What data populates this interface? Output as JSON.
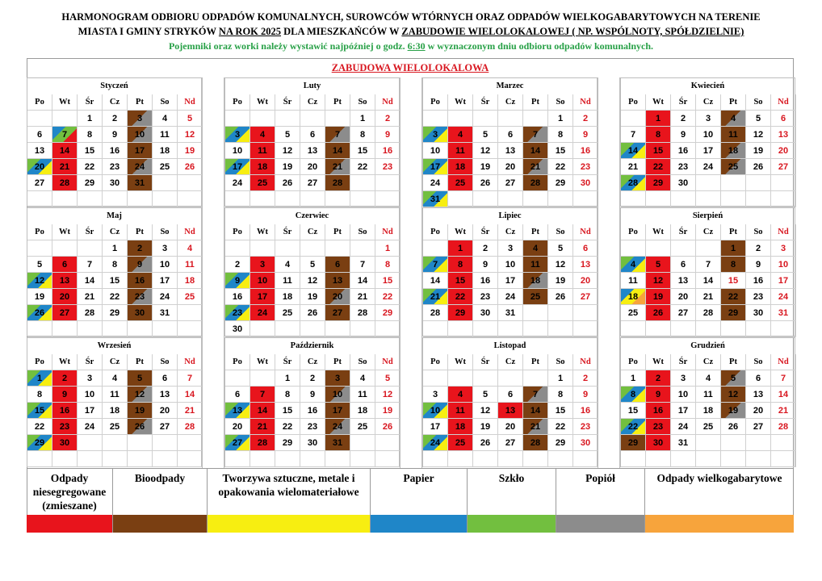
{
  "header": {
    "line1": "HARMONOGRAM ODBIORU ODPADÓW KOMUNALNYCH, SUROWCÓW WTÓRNYCH ORAZ ODPADÓW WIELKOGABARYTOWYCH NA TERENIE",
    "line2a": "MIASTA I GMINY STRYKÓW ",
    "line2b": "NA ROK 2025",
    "line2c": " DLA MIESZKAŃCÓW W ",
    "line2d": "ZABUDOWIE WIELOLOKALOWEJ ( NP. WSPÓLNOTY, SPÓŁDZIELNIE)",
    "line3a": "Pojemniki oraz worki należy wystawić najpóźniej o godz. ",
    "line3b": "6:30",
    "line3c": " w wyznaczonym dniu odbioru odpadów komunalnych."
  },
  "section_title": "ZABUDOWA WIELOLOKALOWA",
  "day_headers": [
    "Po",
    "Wt",
    "Śr",
    "Cz",
    "Pt",
    "So",
    "Nd"
  ],
  "colors": {
    "red": "#e8141c",
    "brown": "#7a3f12",
    "yellow": "#f7ee11",
    "blue": "#1f86c8",
    "green": "#72bf3f",
    "gray": "#8c8c8c",
    "orange": "#f7a43c",
    "sunday_text": "#d8161f"
  },
  "months": [
    {
      "name": "Styczeń",
      "offset": 2,
      "days": 31,
      "marks": {
        "3": [
          "brown",
          "gray"
        ],
        "7": [
          "blue",
          "green",
          "red"
        ],
        "10": [
          "brown",
          "gray"
        ],
        "14": [
          "red"
        ],
        "17": [
          "brown"
        ],
        "20": [
          "green",
          "blue",
          "yellow"
        ],
        "21": [
          "red"
        ],
        "24": [
          "brown",
          "gray"
        ],
        "28": [
          "red"
        ],
        "31": [
          "brown"
        ]
      }
    },
    {
      "name": "Luty",
      "offset": 5,
      "days": 28,
      "marks": {
        "3": [
          "green",
          "blue",
          "yellow"
        ],
        "4": [
          "red"
        ],
        "7": [
          "brown",
          "gray"
        ],
        "11": [
          "red"
        ],
        "14": [
          "brown"
        ],
        "17": [
          "green",
          "blue",
          "yellow"
        ],
        "18": [
          "red"
        ],
        "21": [
          "brown",
          "gray"
        ],
        "25": [
          "red"
        ],
        "28": [
          "brown"
        ]
      }
    },
    {
      "name": "Marzec",
      "offset": 5,
      "days": 31,
      "marks": {
        "3": [
          "green",
          "blue",
          "yellow"
        ],
        "4": [
          "red"
        ],
        "7": [
          "brown",
          "gray"
        ],
        "11": [
          "red"
        ],
        "14": [
          "brown"
        ],
        "17": [
          "green",
          "blue",
          "yellow"
        ],
        "18": [
          "red"
        ],
        "21": [
          "brown",
          "gray"
        ],
        "25": [
          "red"
        ],
        "28": [
          "brown"
        ],
        "31": [
          "green",
          "blue",
          "yellow"
        ]
      }
    },
    {
      "name": "Kwiecień",
      "offset": 1,
      "days": 30,
      "marks": {
        "1": [
          "red"
        ],
        "4": [
          "brown",
          "gray"
        ],
        "8": [
          "red"
        ],
        "11": [
          "brown"
        ],
        "14": [
          "green",
          "blue",
          "yellow"
        ],
        "15": [
          "red"
        ],
        "18": [
          "brown",
          "gray"
        ],
        "22": [
          "red"
        ],
        "25": [
          "brown",
          "gray"
        ],
        "28": [
          "green",
          "blue",
          "yellow"
        ],
        "29": [
          "red"
        ]
      }
    },
    {
      "name": "Maj",
      "offset": 3,
      "days": 31,
      "marks": {
        "2": [
          "brown"
        ],
        "6": [
          "red"
        ],
        "9": [
          "brown",
          "gray"
        ],
        "12": [
          "green",
          "blue",
          "yellow"
        ],
        "13": [
          "red"
        ],
        "16": [
          "brown"
        ],
        "20": [
          "red"
        ],
        "23": [
          "brown",
          "gray"
        ],
        "26": [
          "green",
          "blue",
          "yellow"
        ],
        "27": [
          "red"
        ],
        "30": [
          "brown"
        ]
      }
    },
    {
      "name": "Czerwiec",
      "offset": 6,
      "days": 30,
      "marks": {
        "3": [
          "red"
        ],
        "6": [
          "brown"
        ],
        "9": [
          "green",
          "blue",
          "yellow"
        ],
        "10": [
          "red"
        ],
        "13": [
          "brown"
        ],
        "17": [
          "red"
        ],
        "20": [
          "brown",
          "gray"
        ],
        "23": [
          "green",
          "blue",
          "yellow"
        ],
        "24": [
          "red"
        ],
        "27": [
          "brown"
        ]
      }
    },
    {
      "name": "Lipiec",
      "offset": 1,
      "days": 31,
      "marks": {
        "1": [
          "red"
        ],
        "4": [
          "brown"
        ],
        "7": [
          "green",
          "blue",
          "yellow"
        ],
        "8": [
          "red"
        ],
        "11": [
          "brown"
        ],
        "15": [
          "red"
        ],
        "18": [
          "brown",
          "gray"
        ],
        "21": [
          "green",
          "blue",
          "yellow"
        ],
        "22": [
          "red"
        ],
        "25": [
          "brown"
        ],
        "29": [
          "red"
        ]
      }
    },
    {
      "name": "Sierpień",
      "offset": 4,
      "days": 31,
      "marks": {
        "1": [
          "brown"
        ],
        "4": [
          "green",
          "blue",
          "yellow"
        ],
        "5": [
          "red"
        ],
        "8": [
          "brown"
        ],
        "12": [
          "red"
        ],
        "15": [],
        "18": [
          "blue",
          "yellow",
          "orange"
        ],
        "19": [
          "red"
        ],
        "22": [
          "brown"
        ],
        "26": [
          "red"
        ],
        "29": [
          "brown"
        ]
      }
    },
    {
      "name": "Wrzesień",
      "offset": 0,
      "days": 30,
      "marks": {
        "1": [
          "green",
          "blue",
          "yellow"
        ],
        "2": [
          "red"
        ],
        "5": [
          "brown"
        ],
        "9": [
          "red"
        ],
        "12": [
          "brown",
          "gray"
        ],
        "15": [
          "green",
          "blue",
          "yellow"
        ],
        "16": [
          "red"
        ],
        "19": [
          "brown"
        ],
        "23": [
          "red"
        ],
        "26": [
          "brown",
          "gray"
        ],
        "29": [
          "green",
          "blue",
          "yellow"
        ],
        "30": [
          "red"
        ]
      }
    },
    {
      "name": "Październik",
      "offset": 2,
      "days": 31,
      "marks": {
        "3": [
          "brown"
        ],
        "7": [
          "red"
        ],
        "10": [
          "brown",
          "gray"
        ],
        "13": [
          "green",
          "blue",
          "yellow"
        ],
        "14": [
          "red"
        ],
        "17": [
          "brown"
        ],
        "21": [
          "red"
        ],
        "24": [
          "brown",
          "gray"
        ],
        "27": [
          "green",
          "blue",
          "yellow"
        ],
        "28": [
          "red"
        ],
        "31": [
          "brown"
        ]
      }
    },
    {
      "name": "Listopad",
      "offset": 5,
      "days": 30,
      "marks": {
        "4": [
          "red"
        ],
        "7": [
          "brown",
          "gray"
        ],
        "10": [
          "green",
          "blue",
          "yellow"
        ],
        "11": [
          "red"
        ],
        "13": [
          "red"
        ],
        "14": [
          "brown"
        ],
        "18": [
          "red"
        ],
        "21": [
          "brown",
          "gray"
        ],
        "24": [
          "green",
          "blue",
          "yellow"
        ],
        "25": [
          "red"
        ],
        "28": [
          "brown"
        ]
      }
    },
    {
      "name": "Grudzień",
      "offset": 0,
      "days": 31,
      "marks": {
        "2": [
          "red"
        ],
        "5": [
          "brown",
          "gray"
        ],
        "8": [
          "green",
          "blue",
          "yellow"
        ],
        "9": [
          "red"
        ],
        "12": [
          "brown"
        ],
        "16": [
          "red"
        ],
        "19": [
          "brown",
          "gray"
        ],
        "22": [
          "green",
          "blue",
          "yellow"
        ],
        "23": [
          "red"
        ],
        "29": [
          "brown"
        ],
        "30": [
          "red"
        ]
      }
    }
  ],
  "legend": [
    {
      "label": "Odpady niesegregowane (zmieszane)",
      "color": "#e8141c"
    },
    {
      "label": "Bioodpady",
      "color": "#7a3f12"
    },
    {
      "label": "Tworzywa sztuczne, metale i opakowania wielomateriałowe",
      "color": "#f7ee11"
    },
    {
      "label": "Papier",
      "color": "#1f86c8"
    },
    {
      "label": "Szkło",
      "color": "#72bf3f"
    },
    {
      "label": "Popiół",
      "color": "#8c8c8c"
    },
    {
      "label": "Odpady wielkogabarytowe",
      "color": "#f7a43c"
    }
  ]
}
